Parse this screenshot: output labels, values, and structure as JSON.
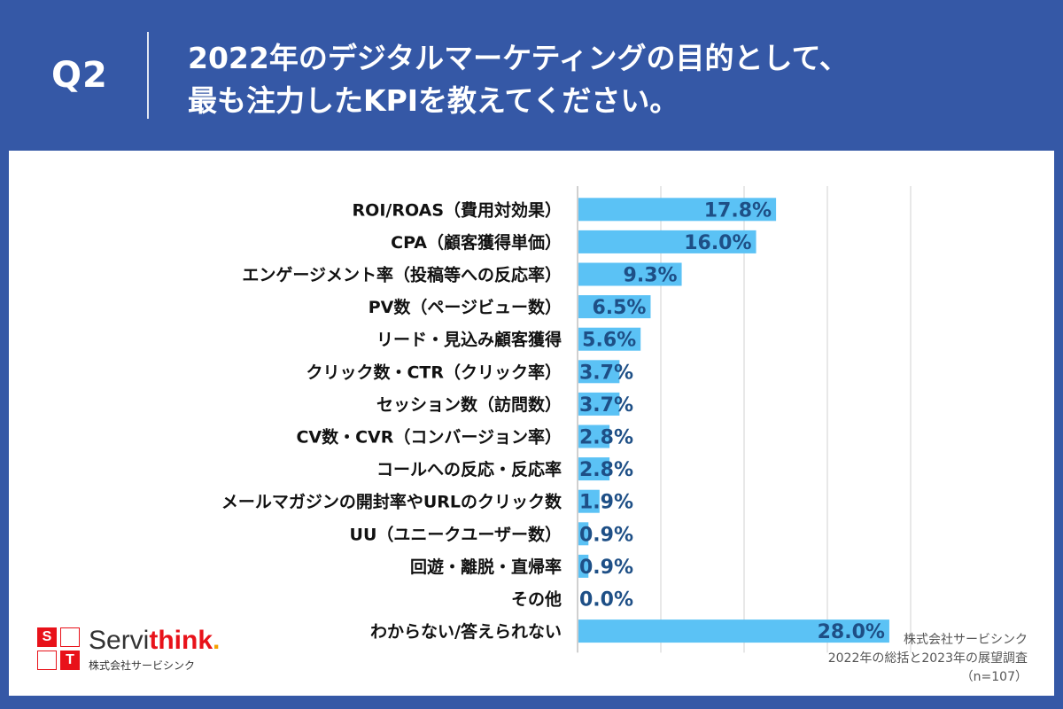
{
  "header": {
    "question_label": "Q2",
    "title_line1": "2022年のデジタルマーケティングの目的として、",
    "title_line2": "最も注力したKPIを教えてください。"
  },
  "colors": {
    "background": "#3558a6",
    "bar": "#5bc2f5",
    "value_label": "#1e4f86",
    "gridline": "#d0d0d0"
  },
  "chart_data": {
    "type": "bar",
    "orientation": "horizontal",
    "categories": [
      "ROI/ROAS（費用対効果）",
      "CPA（顧客獲得単価）",
      "エンゲージメント率（投稿等への反応率）",
      "PV数（ページビュー数）",
      "リード・見込み顧客獲得",
      "クリック数・CTR（クリック率）",
      "セッション数（訪問数）",
      "CV数・CVR（コンバージョン率）",
      "コールへの反応・反応率",
      "メールマガジンの開封率やURLのクリック数",
      "UU（ユニークユーザー数）",
      "回遊・離脱・直帰率",
      "その他",
      "わからない/答えられない"
    ],
    "values": [
      17.8,
      16.0,
      9.3,
      6.5,
      5.6,
      3.7,
      3.7,
      2.8,
      2.8,
      1.9,
      0.9,
      0.9,
      0.0,
      28.0
    ],
    "value_labels": [
      "17.8%",
      "16.0%",
      "9.3%",
      "6.5%",
      "5.6%",
      "3.7%",
      "3.7%",
      "2.8%",
      "2.8%",
      "1.9%",
      "0.9%",
      "0.9%",
      "0.0%",
      "28.0%"
    ],
    "xlim": [
      0,
      30
    ],
    "grid_step": 7.5,
    "grid": true,
    "unit": "%"
  },
  "logo": {
    "letters": [
      "S",
      "T"
    ],
    "name_part1": "Servi",
    "name_part2": "think",
    "name_dot": ".",
    "sub": "株式会社サービシンク"
  },
  "source": {
    "line1": "株式会社サービシンク",
    "line2": "2022年の総括と2023年の展望調査",
    "line3": "（n=107）"
  }
}
